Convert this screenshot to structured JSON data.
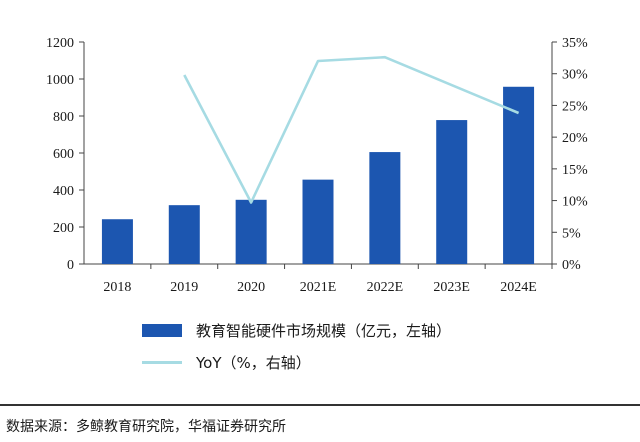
{
  "chart_data": {
    "type": "bar+line",
    "categories": [
      "2018",
      "2019",
      "2020",
      "2021E",
      "2022E",
      "2023E",
      "2024E"
    ],
    "series": [
      {
        "name": "教育智能硬件市场规模（亿元，左轴）",
        "type": "bar",
        "axis": "left",
        "values": [
          242,
          318,
          347,
          456,
          605,
          778,
          958
        ]
      },
      {
        "name": "YoY（%，右轴）",
        "type": "line",
        "axis": "right",
        "values": [
          null,
          29.8,
          9.7,
          32.0,
          32.6,
          null,
          23.8
        ]
      }
    ],
    "left_axis": {
      "min": 0,
      "max": 1200,
      "ticks": [
        "0",
        "200",
        "400",
        "600",
        "800",
        "1000",
        "1200"
      ]
    },
    "right_axis": {
      "min": 0,
      "max": 35,
      "ticks": [
        "0%",
        "5%",
        "10%",
        "15%",
        "20%",
        "25%",
        "30%",
        "35%"
      ]
    },
    "colors": {
      "bar": "#1c56b0",
      "line": "#a6dbe3"
    }
  },
  "legend": {
    "bar_label": "教育智能硬件市场规模（亿元，左轴）",
    "line_label": "YoY（%，右轴）"
  },
  "source": "数据来源：多鲸教育研究院，华福证券研究所"
}
